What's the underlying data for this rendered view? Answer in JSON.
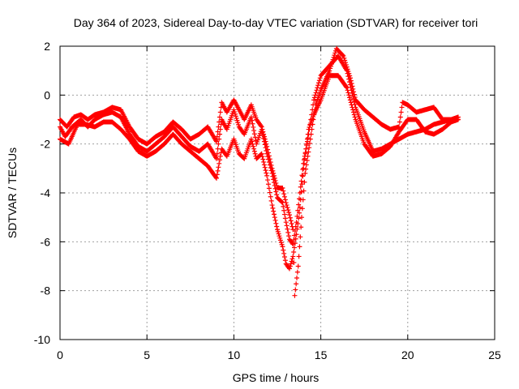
{
  "chart_data": {
    "type": "scatter",
    "title": "Day 364 of 2023, Sidereal Day-to-day VTEC variation (SDTVAR) for receiver tori",
    "xlabel": "GPS time / hours",
    "ylabel": "SDTVAR / TECUs",
    "xlim": [
      0,
      25
    ],
    "ylim": [
      -10,
      2
    ],
    "xticks": [
      0,
      5,
      10,
      15,
      20,
      25
    ],
    "yticks": [
      -10,
      -8,
      -6,
      -4,
      -2,
      0,
      2
    ],
    "grid": true,
    "marker": "+",
    "series": [
      {
        "name": "SDTVAR",
        "color": "#ff0000",
        "traces": [
          [
            [
              0.0,
              -1.3
            ],
            [
              0.3,
              -1.7
            ],
            [
              0.7,
              -1.3
            ],
            [
              1.2,
              -1.0
            ],
            [
              1.6,
              -1.3
            ],
            [
              2.0,
              -1.0
            ],
            [
              2.5,
              -0.8
            ],
            [
              3.0,
              -0.7
            ],
            [
              3.5,
              -0.9
            ],
            [
              4.0,
              -1.6
            ],
            [
              4.5,
              -2.1
            ],
            [
              5.0,
              -2.3
            ],
            [
              5.5,
              -2.0
            ],
            [
              6.0,
              -1.7
            ],
            [
              6.5,
              -1.3
            ],
            [
              7.0,
              -1.7
            ],
            [
              7.5,
              -2.1
            ],
            [
              8.0,
              -2.3
            ],
            [
              8.5,
              -2.0
            ],
            [
              9.0,
              -2.6
            ],
            [
              9.3,
              -1.0
            ],
            [
              9.6,
              -1.4
            ],
            [
              10.0,
              -0.6
            ],
            [
              10.3,
              -1.3
            ],
            [
              10.6,
              -1.6
            ],
            [
              11.0,
              -0.9
            ],
            [
              11.3,
              -2.0
            ],
            [
              11.6,
              -1.4
            ],
            [
              11.9,
              -2.4
            ],
            [
              12.2,
              -3.2
            ],
            [
              12.5,
              -4.2
            ],
            [
              12.8,
              -4.4
            ],
            [
              13.0,
              -5.2
            ],
            [
              13.2,
              -5.9
            ],
            [
              13.4,
              -6.1
            ],
            [
              13.6,
              -5.2
            ],
            [
              13.8,
              -4.0
            ],
            [
              14.0,
              -2.8
            ],
            [
              14.3,
              -1.6
            ],
            [
              14.6,
              -0.2
            ],
            [
              15.0,
              0.8
            ],
            [
              15.5,
              1.2
            ],
            [
              16.0,
              1.6
            ],
            [
              16.5,
              1.0
            ],
            [
              17.0,
              -0.5
            ],
            [
              17.5,
              -1.5
            ],
            [
              18.0,
              -2.3
            ],
            [
              18.5,
              -2.2
            ],
            [
              19.0,
              -2.0
            ],
            [
              19.5,
              -1.8
            ],
            [
              20.0,
              -1.6
            ],
            [
              20.5,
              -1.5
            ],
            [
              21.0,
              -1.4
            ],
            [
              21.5,
              -1.2
            ],
            [
              22.0,
              -1.1
            ],
            [
              22.5,
              -1.0
            ],
            [
              22.9,
              -1.0
            ]
          ],
          [
            [
              0.0,
              -1.8
            ],
            [
              0.5,
              -2.0
            ],
            [
              1.0,
              -1.2
            ],
            [
              1.5,
              -1.2
            ],
            [
              2.0,
              -1.3
            ],
            [
              2.5,
              -1.1
            ],
            [
              3.0,
              -1.1
            ],
            [
              3.5,
              -1.4
            ],
            [
              4.0,
              -1.8
            ],
            [
              4.5,
              -2.3
            ],
            [
              5.0,
              -2.5
            ],
            [
              5.5,
              -2.3
            ],
            [
              6.0,
              -2.0
            ],
            [
              6.5,
              -1.6
            ],
            [
              7.0,
              -2.0
            ],
            [
              7.5,
              -2.3
            ],
            [
              8.0,
              -2.6
            ],
            [
              8.5,
              -2.9
            ],
            [
              9.0,
              -3.4
            ],
            [
              9.3,
              -2.2
            ],
            [
              9.6,
              -2.5
            ],
            [
              10.0,
              -1.8
            ],
            [
              10.3,
              -2.4
            ],
            [
              10.6,
              -2.6
            ],
            [
              11.0,
              -1.8
            ],
            [
              11.3,
              -2.6
            ],
            [
              11.6,
              -2.4
            ],
            [
              11.9,
              -3.3
            ],
            [
              12.2,
              -4.5
            ],
            [
              12.5,
              -5.5
            ],
            [
              12.8,
              -6.2
            ],
            [
              13.0,
              -6.9
            ],
            [
              13.2,
              -7.1
            ],
            [
              13.4,
              -6.6
            ],
            [
              13.6,
              -5.7
            ],
            [
              13.8,
              -4.6
            ],
            [
              14.0,
              -3.0
            ],
            [
              14.3,
              -1.4
            ],
            [
              14.6,
              -0.8
            ],
            [
              15.0,
              -0.2
            ],
            [
              15.5,
              0.8
            ],
            [
              16.0,
              0.8
            ],
            [
              16.5,
              0.3
            ],
            [
              17.0,
              -1.0
            ],
            [
              17.5,
              -2.0
            ],
            [
              18.0,
              -2.5
            ],
            [
              18.5,
              -2.4
            ],
            [
              19.0,
              -2.1
            ],
            [
              19.5,
              -1.5
            ],
            [
              20.0,
              -1.0
            ],
            [
              20.5,
              -1.0
            ],
            [
              21.0,
              -1.5
            ],
            [
              21.5,
              -1.6
            ],
            [
              22.0,
              -1.4
            ],
            [
              22.5,
              -1.1
            ],
            [
              22.9,
              -1.0
            ]
          ],
          [
            [
              0.0,
              -1.0
            ],
            [
              0.4,
              -1.3
            ],
            [
              0.8,
              -0.9
            ],
            [
              1.2,
              -0.8
            ],
            [
              1.6,
              -1.0
            ],
            [
              2.0,
              -0.8
            ],
            [
              2.5,
              -0.7
            ],
            [
              3.0,
              -0.5
            ],
            [
              3.5,
              -0.6
            ],
            [
              4.0,
              -1.3
            ],
            [
              4.5,
              -1.8
            ],
            [
              5.0,
              -2.0
            ],
            [
              5.5,
              -1.7
            ],
            [
              6.0,
              -1.5
            ],
            [
              6.5,
              -1.1
            ],
            [
              7.0,
              -1.4
            ],
            [
              7.5,
              -1.8
            ],
            [
              8.0,
              -1.6
            ],
            [
              8.5,
              -1.3
            ],
            [
              9.0,
              -1.9
            ],
            [
              9.3,
              -0.3
            ],
            [
              9.6,
              -0.7
            ],
            [
              10.0,
              -0.2
            ],
            [
              10.3,
              -0.6
            ],
            [
              10.6,
              -1.0
            ],
            [
              11.0,
              -0.4
            ],
            [
              11.3,
              -1.0
            ],
            [
              11.6,
              -1.3
            ],
            [
              11.9,
              -2.1
            ],
            [
              12.2,
              -3.0
            ],
            [
              12.5,
              -3.8
            ],
            [
              12.8,
              -3.8
            ],
            [
              13.0,
              -4.4
            ],
            [
              13.2,
              -4.9
            ],
            [
              13.4,
              -5.5
            ],
            [
              13.5,
              -8.2
            ],
            [
              13.7,
              -7.0
            ],
            [
              13.9,
              -5.0
            ],
            [
              14.1,
              -3.2
            ],
            [
              14.4,
              -1.8
            ],
            [
              14.7,
              -0.4
            ],
            [
              15.0,
              0.2
            ],
            [
              15.5,
              1.0
            ],
            [
              15.9,
              1.9
            ],
            [
              16.3,
              1.6
            ],
            [
              16.7,
              0.7
            ],
            [
              17.0,
              -0.2
            ],
            [
              17.5,
              -0.6
            ],
            [
              18.0,
              -0.9
            ],
            [
              18.5,
              -1.2
            ],
            [
              19.0,
              -1.4
            ],
            [
              19.5,
              -1.3
            ],
            [
              19.7,
              -0.3
            ],
            [
              20.0,
              -0.4
            ],
            [
              20.5,
              -0.7
            ],
            [
              21.0,
              -0.6
            ],
            [
              21.5,
              -0.5
            ],
            [
              22.0,
              -1.0
            ],
            [
              22.5,
              -1.0
            ],
            [
              22.9,
              -0.9
            ]
          ]
        ]
      }
    ]
  }
}
